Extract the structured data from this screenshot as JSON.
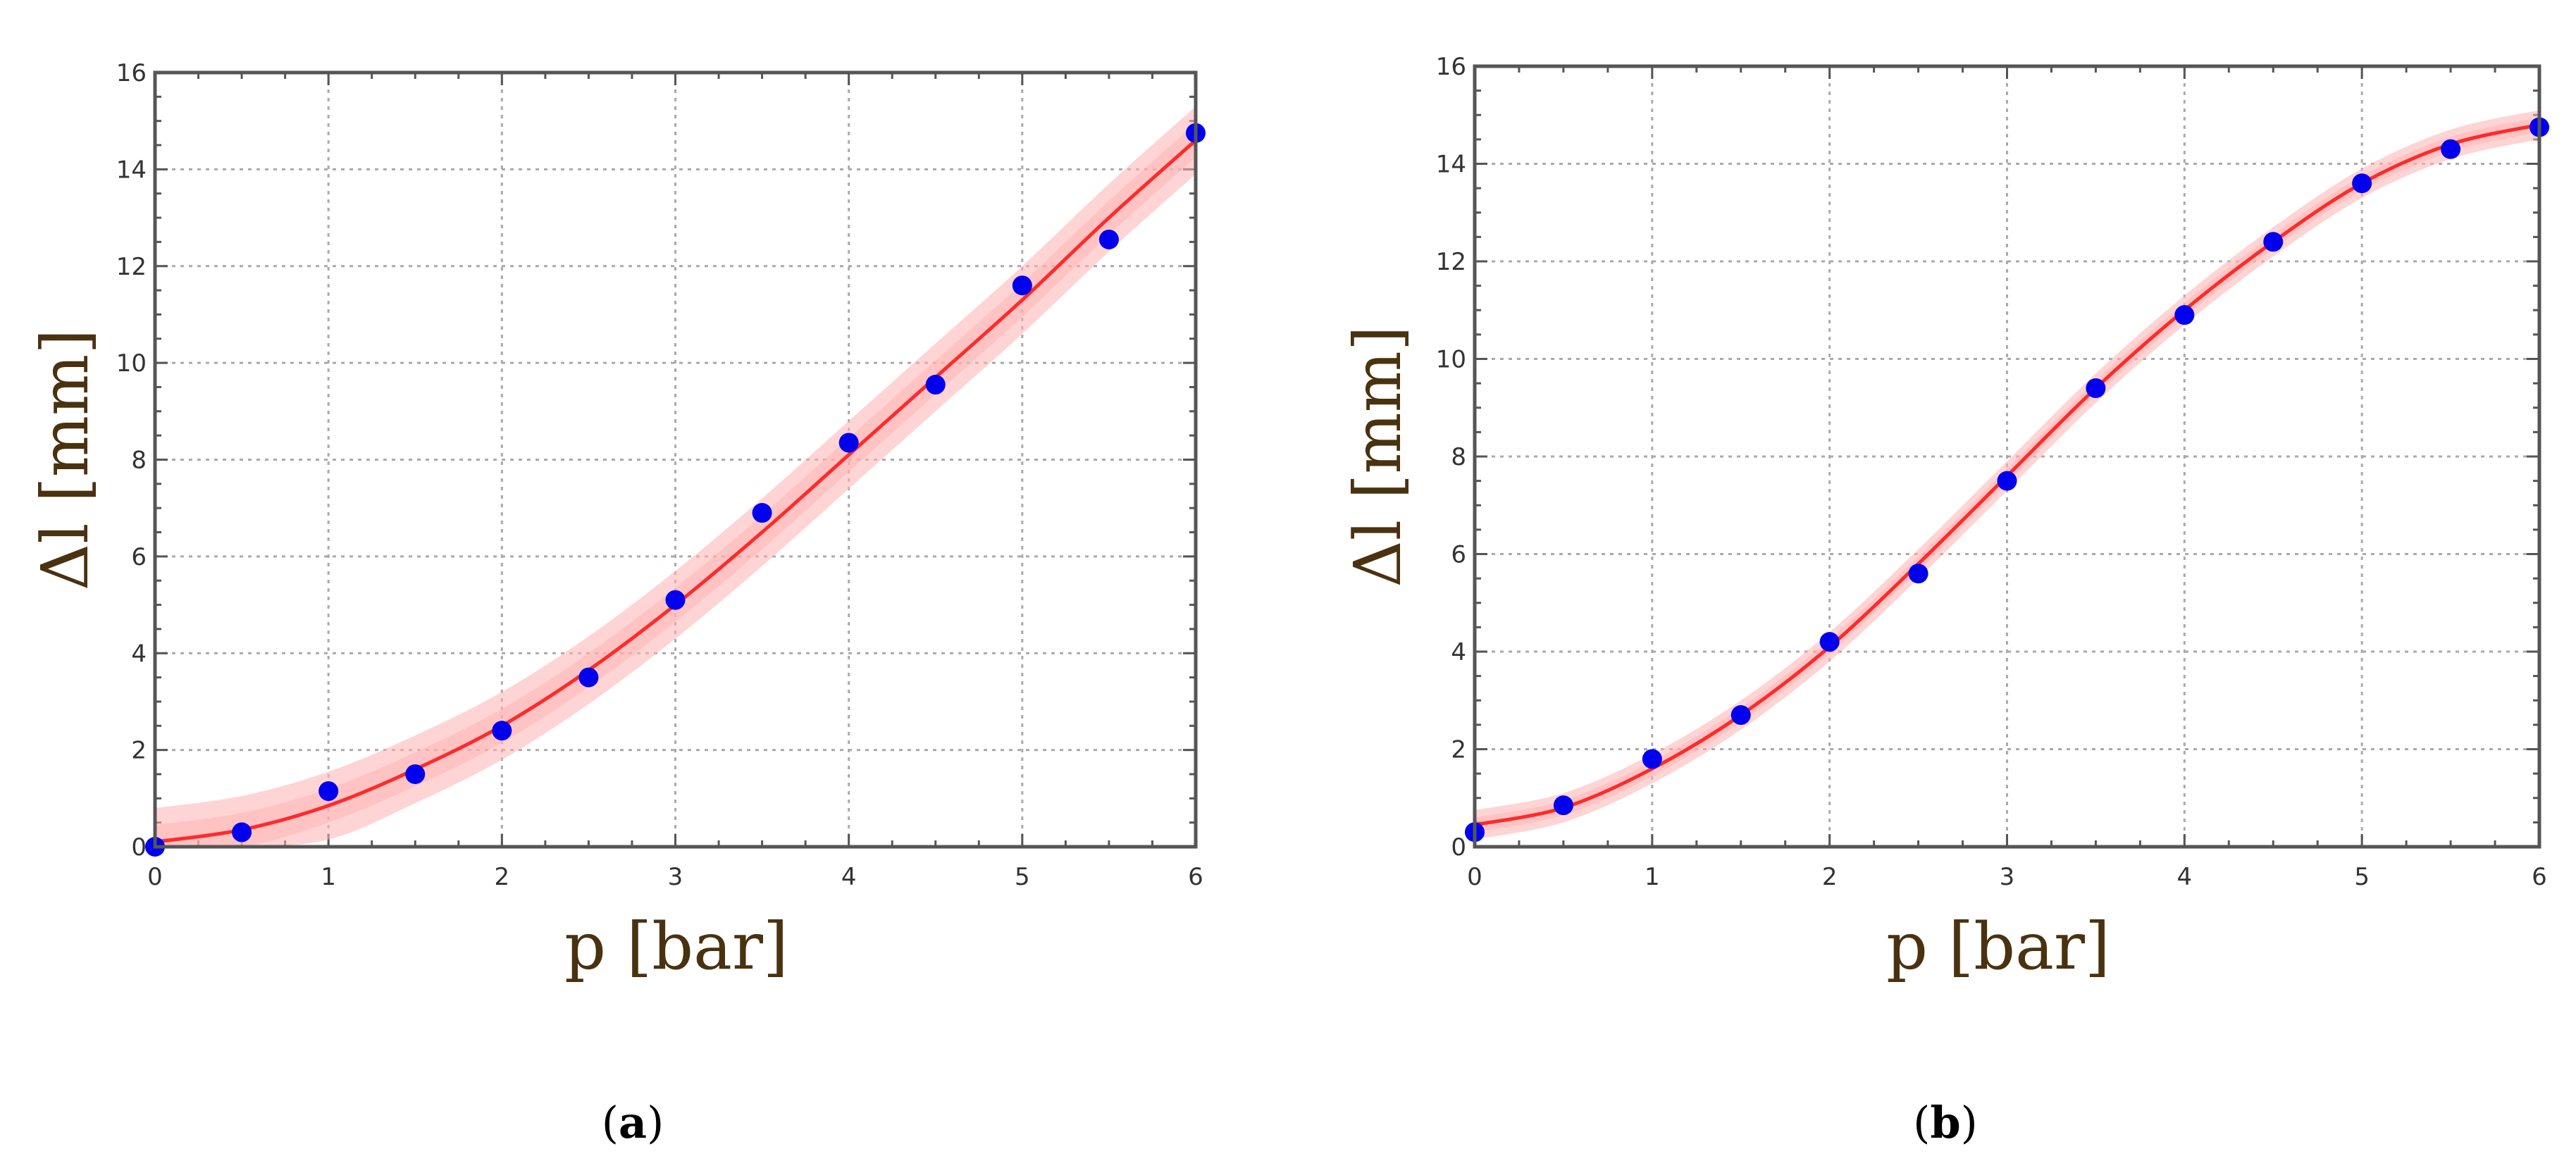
{
  "chart_data": [
    {
      "type": "scatter",
      "panel_label": "a",
      "xlabel": "p [bar]",
      "ylabel": "Δl [mm]",
      "xlim": [
        0,
        6
      ],
      "ylim": [
        0,
        16
      ],
      "xticks": [
        0,
        1,
        2,
        3,
        4,
        5,
        6
      ],
      "yticks": [
        0,
        2,
        4,
        6,
        8,
        10,
        12,
        14,
        16
      ],
      "grid": true,
      "series": [
        {
          "kind": "points",
          "color": "#0000ee",
          "x": [
            0,
            0.5,
            1,
            1.5,
            2,
            2.5,
            3,
            3.5,
            4,
            4.5,
            5,
            5.5,
            6
          ],
          "y": [
            0,
            0.3,
            1.15,
            1.5,
            2.4,
            3.5,
            5.1,
            6.9,
            8.35,
            9.55,
            11.6,
            12.55,
            14.75
          ]
        },
        {
          "kind": "fit",
          "color": "#ff2a2a",
          "band_color": "#ffb0b0",
          "band_halfwidth": 0.7,
          "x": [
            0,
            0.5,
            1,
            1.5,
            2,
            2.5,
            3,
            3.5,
            4,
            4.5,
            5,
            5.5,
            6
          ],
          "y": [
            0.1,
            0.35,
            0.85,
            1.6,
            2.5,
            3.65,
            5.0,
            6.5,
            8.1,
            9.7,
            11.3,
            13.0,
            14.6
          ]
        }
      ]
    },
    {
      "type": "scatter",
      "panel_label": "b",
      "xlabel": "p [bar]",
      "ylabel": "Δl [mm]",
      "xlim": [
        0,
        6
      ],
      "ylim": [
        0,
        16
      ],
      "xticks": [
        0,
        1,
        2,
        3,
        4,
        5,
        6
      ],
      "yticks": [
        0,
        2,
        4,
        6,
        8,
        10,
        12,
        14,
        16
      ],
      "grid": true,
      "series": [
        {
          "kind": "points",
          "color": "#0000ee",
          "x": [
            0,
            0.5,
            1,
            1.5,
            2,
            2.5,
            3,
            3.5,
            4,
            4.5,
            5,
            5.5,
            6
          ],
          "y": [
            0.3,
            0.85,
            1.8,
            2.7,
            4.2,
            5.6,
            7.5,
            9.4,
            10.9,
            12.4,
            13.6,
            14.3,
            14.75
          ]
        },
        {
          "kind": "fit",
          "color": "#ff2a2a",
          "band_color": "#ffb0b0",
          "band_halfwidth": 0.3,
          "x": [
            0,
            0.5,
            1,
            1.5,
            2,
            2.5,
            3,
            3.5,
            4,
            4.5,
            5,
            5.5,
            6
          ],
          "y": [
            0.45,
            0.8,
            1.6,
            2.7,
            4.1,
            5.8,
            7.6,
            9.4,
            11.0,
            12.4,
            13.6,
            14.4,
            14.8
          ]
        }
      ]
    }
  ]
}
